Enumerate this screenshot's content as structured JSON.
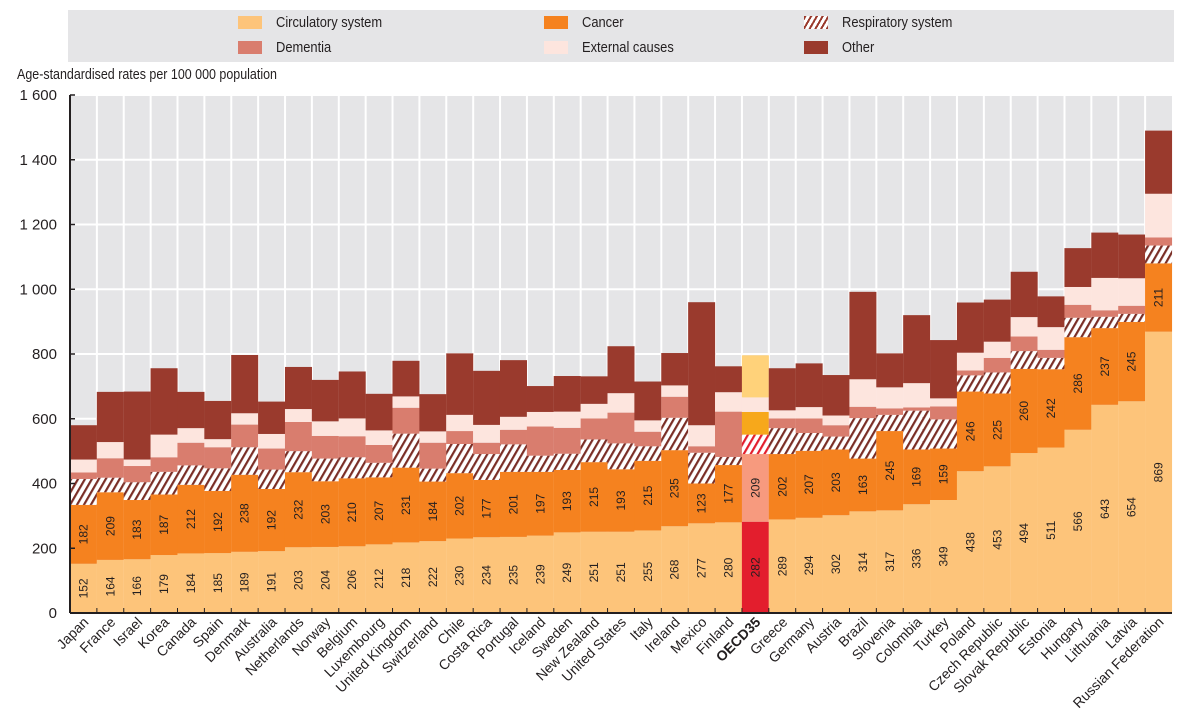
{
  "chart_data": {
    "type": "bar",
    "stacked": true,
    "title": "",
    "ylabel": "Age-standardised rates per 100 000 population",
    "xlabel": "",
    "ylim": [
      0,
      1600
    ],
    "yticks": [
      0,
      200,
      400,
      600,
      800,
      1000,
      1200,
      1400,
      1600
    ],
    "ytick_labels": [
      "0",
      "200",
      "400",
      "600",
      "800",
      "1 000",
      "1 200",
      "1 400",
      "1 600"
    ],
    "grid": true,
    "legend_position": "top",
    "highlight_category": "OECD35",
    "categories": [
      "Japan",
      "France",
      "Israel",
      "Korea",
      "Canada",
      "Spain",
      "Denmark",
      "Australia",
      "Netherlands",
      "Norway",
      "Belgium",
      "Luxembourg",
      "United Kingdom",
      "Switzerland",
      "Chile",
      "Costa Rica",
      "Portugal",
      "Iceland",
      "Sweden",
      "New Zealand",
      "United States",
      "Italy",
      "Ireland",
      "Mexico",
      "Finland",
      "OECD35",
      "Greece",
      "Germany",
      "Austria",
      "Brazil",
      "Slovenia",
      "Colombia",
      "Turkey",
      "Poland",
      "Czech Republic",
      "Slovak Republic",
      "Estonia",
      "Hungary",
      "Lithuania",
      "Latvia",
      "Russian Federation"
    ],
    "series": [
      {
        "name": "Circulatory system",
        "color": "#fdc47a",
        "highlight_color": "#e31e2d",
        "labeled": true,
        "values": [
          152,
          164,
          166,
          179,
          184,
          185,
          189,
          191,
          203,
          204,
          206,
          212,
          218,
          222,
          230,
          234,
          235,
          239,
          249,
          251,
          251,
          255,
          268,
          277,
          280,
          282,
          289,
          294,
          302,
          314,
          317,
          336,
          349,
          438,
          453,
          494,
          511,
          566,
          643,
          654,
          869
        ]
      },
      {
        "name": "Cancer",
        "color": "#f5821f",
        "highlight_color": "#f79a7e",
        "labeled": true,
        "values": [
          182,
          209,
          183,
          187,
          212,
          192,
          238,
          192,
          232,
          203,
          210,
          207,
          231,
          184,
          202,
          177,
          201,
          197,
          193,
          215,
          193,
          215,
          235,
          123,
          177,
          209,
          202,
          207,
          203,
          163,
          245,
          169,
          159,
          246,
          225,
          260,
          242,
          286,
          237,
          245,
          211
        ]
      },
      {
        "name": "Respiratory system",
        "color": "hatch",
        "highlight_color": "hatch-red",
        "labeled": false,
        "values": [
          80,
          45,
          55,
          70,
          60,
          70,
          85,
          60,
          65,
          70,
          65,
          45,
          105,
          40,
          90,
          80,
          85,
          50,
          50,
          70,
          80,
          45,
          100,
          95,
          25,
          60,
          80,
          55,
          40,
          125,
          50,
          120,
          90,
          50,
          65,
          55,
          35,
          60,
          35,
          25,
          55
        ]
      },
      {
        "name": "Dementia",
        "color": "#d97d6e",
        "highlight_color": "#f7a81b",
        "labeled": false,
        "values": [
          20,
          60,
          50,
          45,
          70,
          65,
          70,
          65,
          90,
          70,
          65,
          55,
          80,
          80,
          40,
          35,
          45,
          90,
          80,
          65,
          95,
          45,
          65,
          20,
          140,
          70,
          30,
          45,
          35,
          35,
          20,
          10,
          40,
          15,
          45,
          45,
          25,
          40,
          20,
          25,
          25
        ]
      },
      {
        "name": "External causes",
        "color": "#fde5de",
        "highlight_color": "#fde5de",
        "labeled": false,
        "values": [
          40,
          50,
          20,
          70,
          45,
          25,
          35,
          45,
          40,
          45,
          55,
          45,
          35,
          35,
          50,
          55,
          40,
          45,
          50,
          45,
          60,
          35,
          35,
          65,
          60,
          45,
          25,
          35,
          30,
          85,
          65,
          75,
          25,
          55,
          50,
          60,
          70,
          55,
          100,
          85,
          135
        ]
      },
      {
        "name": "Other",
        "color": "#9a3a2d",
        "highlight_color": "#ffd27a",
        "labeled": false,
        "values": [
          106,
          155,
          210,
          205,
          112,
          118,
          180,
          100,
          130,
          128,
          145,
          113,
          110,
          115,
          190,
          167,
          175,
          80,
          110,
          85,
          145,
          120,
          100,
          380,
          80,
          130,
          130,
          135,
          125,
          270,
          105,
          210,
          180,
          155,
          130,
          140,
          95,
          120,
          140,
          135,
          195
        ]
      }
    ]
  },
  "legend": {
    "items": [
      {
        "label": "Circulatory system",
        "color": "#fdc47a",
        "type": "solid"
      },
      {
        "label": "Cancer",
        "color": "#f5821f",
        "type": "solid"
      },
      {
        "label": "Respiratory system",
        "color": "#9a3a2d",
        "type": "hatch"
      },
      {
        "label": "Dementia",
        "color": "#d97d6e",
        "type": "solid"
      },
      {
        "label": "External causes",
        "color": "#fde5de",
        "type": "solid"
      },
      {
        "label": "Other",
        "color": "#9a3a2d",
        "type": "solid"
      }
    ]
  },
  "colors": {
    "plot_background": "#e5e5e7",
    "gridline": "#ffffff",
    "axis": "#231f20"
  }
}
